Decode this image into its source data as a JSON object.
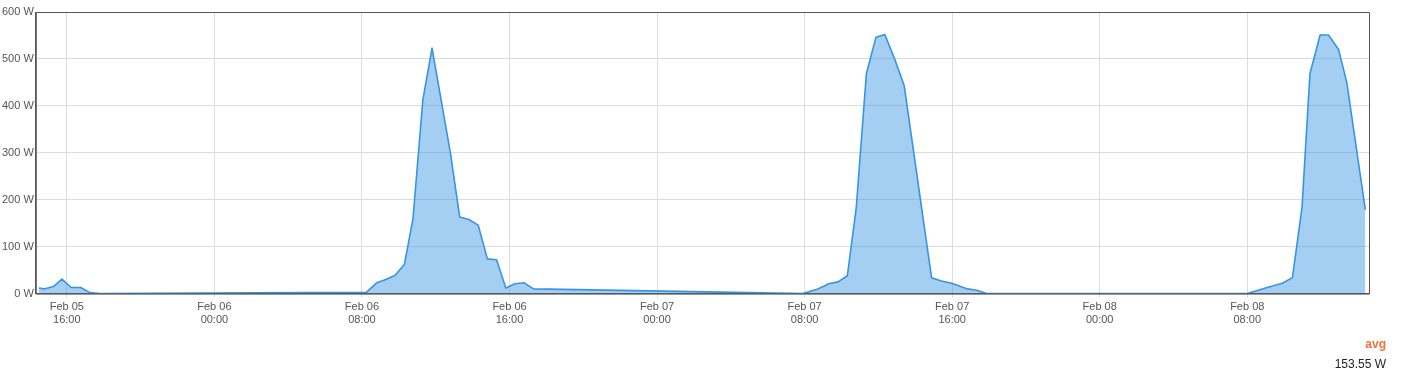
{
  "chart_data": {
    "type": "area",
    "x": [
      "--02-05T14:29",
      "--02-05T14:46",
      "--02-05T15:16",
      "--02-05T15:44",
      "--02-05T16:14",
      "--02-05T16:45",
      "--02-05T17:15",
      "--02-05T17:47",
      "--02-06T08:15",
      "--02-06T08:48",
      "--02-06T09:18",
      "--02-06T09:48",
      "--02-06T10:18",
      "--02-06T10:46",
      "--02-06T11:18",
      "--02-06T11:48",
      "--02-06T12:48",
      "--02-06T13:18",
      "--02-06T13:48",
      "--02-06T14:18",
      "--02-06T14:48",
      "--02-06T15:18",
      "--02-06T15:48",
      "--02-06T16:18",
      "--02-06T16:48",
      "--02-06T17:18",
      "--02-07T07:54",
      "--02-07T08:43",
      "--02-07T09:19",
      "--02-07T09:49",
      "--02-07T10:19",
      "--02-07T10:48",
      "--02-07T11:21",
      "--02-07T11:52",
      "--02-07T12:21",
      "--02-07T12:54",
      "--02-07T13:24",
      "--02-07T14:53",
      "--02-07T15:25",
      "--02-07T15:58",
      "--02-07T16:50",
      "--02-07T17:20",
      "--02-07T17:52",
      "--02-08T08:00",
      "--02-08T08:54",
      "--02-08T09:54",
      "--02-08T10:27",
      "--02-08T10:58",
      "--02-08T11:24",
      "--02-08T11:57",
      "--02-08T12:24",
      "--02-08T12:57",
      "--02-08T13:24",
      "--02-08T14:24"
    ],
    "series": [
      {
        "color": "#3794e3",
        "values": [
          12,
          10,
          15,
          31,
          13,
          13,
          2,
          0,
          3,
          23,
          30,
          39,
          62,
          159,
          412,
          523,
          299,
          163,
          158,
          146,
          74,
          72,
          12,
          21,
          23,
          10,
          0,
          10,
          21,
          25,
          38,
          183,
          469,
          546,
          552,
          498,
          443,
          34,
          27,
          22,
          10,
          7,
          0,
          0,
          11,
          22,
          34,
          183,
          469,
          551,
          551,
          520,
          449,
          179
        ]
      }
    ],
    "xlim": [
      "--02-05T14:19",
      "--02-08T14:36"
    ],
    "xticks": [
      {
        "value": "--02-05T16:00",
        "label": "Feb 05\n16:00"
      },
      {
        "value": "--02-06T00:00",
        "label": "Feb 06\n00:00"
      },
      {
        "value": "--02-06T08:00",
        "label": "Feb 06\n08:00"
      },
      {
        "value": "--02-06T16:00",
        "label": "Feb 06\n16:00"
      },
      {
        "value": "--02-07T00:00",
        "label": "Feb 07\n00:00"
      },
      {
        "value": "--02-07T08:00",
        "label": "Feb 07\n08:00"
      },
      {
        "value": "--02-07T16:00",
        "label": "Feb 07\n16:00"
      },
      {
        "value": "--02-08T00:00",
        "label": "Feb 08\n00:00"
      },
      {
        "value": "--02-08T08:00",
        "label": "Feb 08\n08:00"
      }
    ],
    "ylim": [
      0,
      600
    ],
    "yticks": [
      {
        "value": 0,
        "label": "0 W"
      },
      {
        "value": 100,
        "label": "100 W"
      },
      {
        "value": 200,
        "label": "200 W"
      },
      {
        "value": 300,
        "label": "300 W"
      },
      {
        "value": 400,
        "label": "400 W"
      },
      {
        "value": 500,
        "label": "500 W"
      },
      {
        "value": 600,
        "label": "600 W"
      }
    ],
    "grid": true,
    "legend": false,
    "marker": "none",
    "line_style": "solid",
    "annotations": [
      "avg",
      "153.55 W"
    ]
  }
}
